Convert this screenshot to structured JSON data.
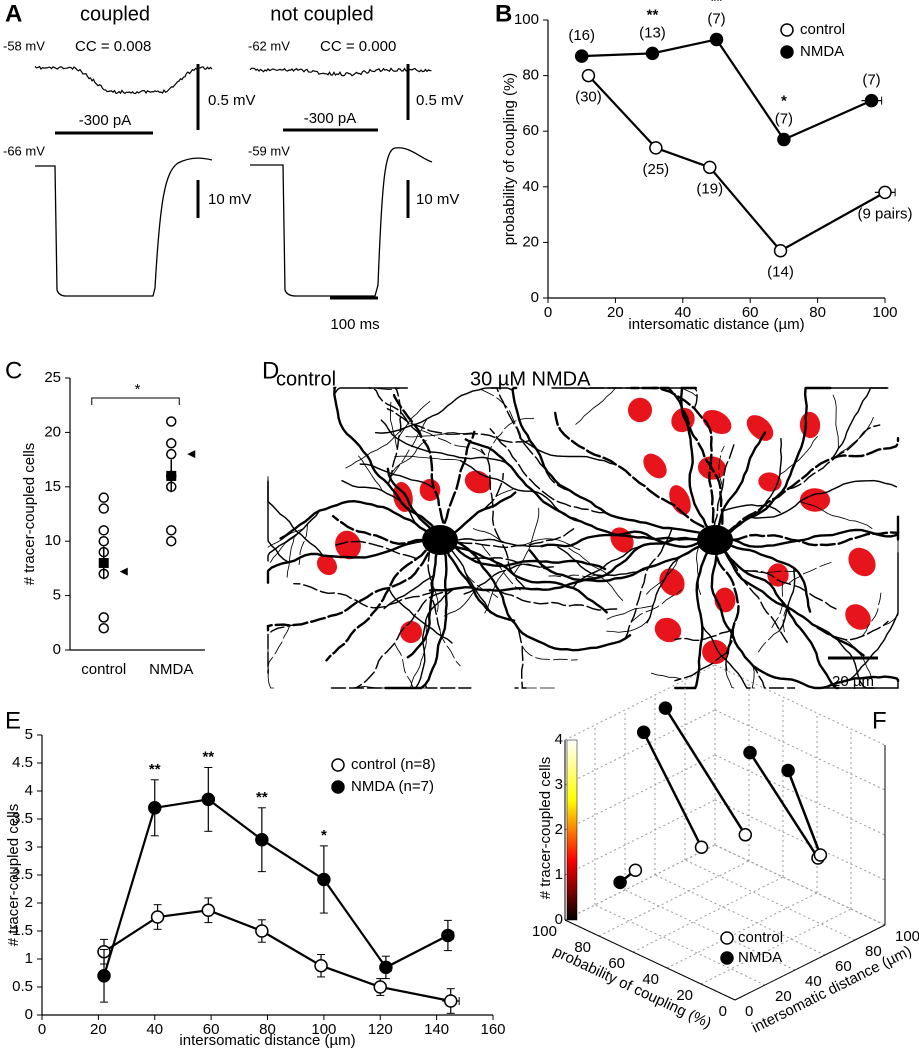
{
  "chart_data": [
    {
      "type": "traces",
      "panel": "A",
      "groups": [
        {
          "title": "coupled",
          "top_potential": "-58 mV",
          "cc": "CC = 0.008",
          "current": "-300 pA",
          "bottom_potential": "-66 mV",
          "top_scale": "0.5 mV",
          "bottom_scale": "10 mV"
        },
        {
          "title": "not coupled",
          "top_potential": "-62 mV",
          "cc": "CC = 0.000",
          "current": "-300 pA",
          "bottom_potential": "-59 mV",
          "top_scale": "0.5 mV",
          "bottom_scale": "10 mV"
        }
      ],
      "time_scale": "100 ms"
    },
    {
      "type": "line",
      "panel": "B",
      "xlabel": "intersomatic distance (µm)",
      "ylabel": "probability of coupling (%)",
      "xlim": [
        0,
        100
      ],
      "xticks": [
        0,
        20,
        40,
        60,
        80,
        100
      ],
      "ylim": [
        0,
        100
      ],
      "yticks": [
        0,
        20,
        40,
        60,
        80,
        100
      ],
      "legend": "top-right",
      "series": [
        {
          "name": "control",
          "color": "#000000",
          "marker_fill": "#ffffff",
          "x": [
            12,
            32,
            48,
            69,
            100
          ],
          "values": [
            80,
            54,
            47,
            17,
            38
          ],
          "xerr": [
            0,
            0,
            0,
            0,
            3
          ],
          "point_labels": [
            "(30)",
            "(25)",
            "(19)",
            "(14)",
            "(9 pairs)"
          ]
        },
        {
          "name": "NMDA",
          "color": "#000000",
          "marker_fill": "#000000",
          "x": [
            10,
            31,
            50,
            70,
            96
          ],
          "values": [
            87,
            88,
            93,
            57,
            71
          ],
          "xerr": [
            0,
            0,
            0,
            0,
            3
          ],
          "point_labels": [
            "(16)",
            "(13)",
            "(7)",
            "(7)",
            "(7)"
          ],
          "significance": [
            null,
            "**",
            "**",
            "*",
            null
          ]
        }
      ]
    },
    {
      "type": "strip",
      "panel": "C",
      "ylabel": "# tracer-coupled cells",
      "ylim": [
        0,
        25
      ],
      "yticks": [
        0,
        5,
        10,
        15,
        20,
        25
      ],
      "categories": [
        "control",
        "NMDA"
      ],
      "points": [
        [
          14,
          13,
          11,
          10,
          9,
          7,
          3,
          2
        ],
        [
          21,
          19,
          18,
          16,
          15,
          11,
          10
        ]
      ],
      "means": [
        8,
        16
      ],
      "sem": [
        1.5,
        1.5
      ],
      "examples": [
        7.2,
        18
      ],
      "significance": "*"
    },
    {
      "type": "image",
      "panel": "D",
      "labels": [
        "control",
        "30 µM NMDA"
      ],
      "scale": "20 µm"
    },
    {
      "type": "line",
      "panel": "E",
      "xlabel": "intersomatic distance (µm)",
      "ylabel": "# tracer-coupled cells",
      "xlim": [
        0,
        160
      ],
      "xticks": [
        0,
        20,
        40,
        60,
        80,
        100,
        120,
        140,
        160
      ],
      "ylim": [
        0,
        5
      ],
      "yticks": [
        0,
        0.5,
        1,
        1.5,
        2,
        2.5,
        3,
        3.5,
        4,
        4.5,
        5
      ],
      "legend": "top-right",
      "series": [
        {
          "name": "control (n=8)",
          "color": "#000000",
          "marker_fill": "#ffffff",
          "x": [
            22,
            41,
            59,
            78,
            99,
            120,
            145
          ],
          "values": [
            1.13,
            1.75,
            1.87,
            1.5,
            0.88,
            0.5,
            0.25
          ],
          "yerr": [
            0.22,
            0.22,
            0.22,
            0.2,
            0.2,
            0.15,
            0.22
          ],
          "xerr": [
            1,
            1,
            1,
            1,
            1,
            1,
            3
          ]
        },
        {
          "name": "NMDA (n=7)",
          "color": "#000000",
          "marker_fill": "#000000",
          "x": [
            22,
            40,
            59,
            78,
            100,
            122,
            144
          ],
          "values": [
            0.7,
            3.7,
            3.85,
            3.13,
            2.42,
            0.85,
            1.42
          ],
          "yerr": [
            0.47,
            0.5,
            0.57,
            0.57,
            0.6,
            0.2,
            0.27
          ],
          "xerr": [
            1,
            1,
            1,
            1,
            1,
            2,
            2
          ],
          "significance": [
            null,
            "**",
            "**",
            "**",
            "*",
            null,
            null
          ]
        }
      ]
    },
    {
      "type": "scatter3d",
      "panel": "F",
      "xlabel": "intersomatic distance (µm)",
      "ylabel": "probability of coupling (%)",
      "zlabel": "# tracer-coupled cells",
      "xlim": [
        0,
        100
      ],
      "xticks": [
        0,
        20,
        40,
        60,
        80,
        100
      ],
      "ylim": [
        0,
        100
      ],
      "yticks": [
        0,
        20,
        40,
        60,
        80,
        100
      ],
      "zlim": [
        0,
        4
      ],
      "zticks": [
        0,
        1,
        2,
        3,
        4
      ],
      "colormap": [
        "#000000",
        "#ff0000",
        "#ffff00",
        "#ffffff"
      ],
      "series": [
        {
          "name": "control",
          "marker_fill": "#ffffff",
          "x": [
            22,
            40,
            59,
            78,
            100
          ],
          "y": [
            78,
            55,
            46,
            20,
            38
          ],
          "values": [
            1.13,
            1.75,
            1.87,
            1.5,
            0.88
          ]
        },
        {
          "name": "NMDA",
          "marker_fill": "#000000",
          "x": [
            22,
            40,
            59,
            78,
            100
          ],
          "y": [
            87,
            89,
            93,
            60,
            57
          ],
          "values": [
            0.7,
            3.7,
            3.85,
            3.13,
            2.42
          ]
        }
      ]
    }
  ]
}
